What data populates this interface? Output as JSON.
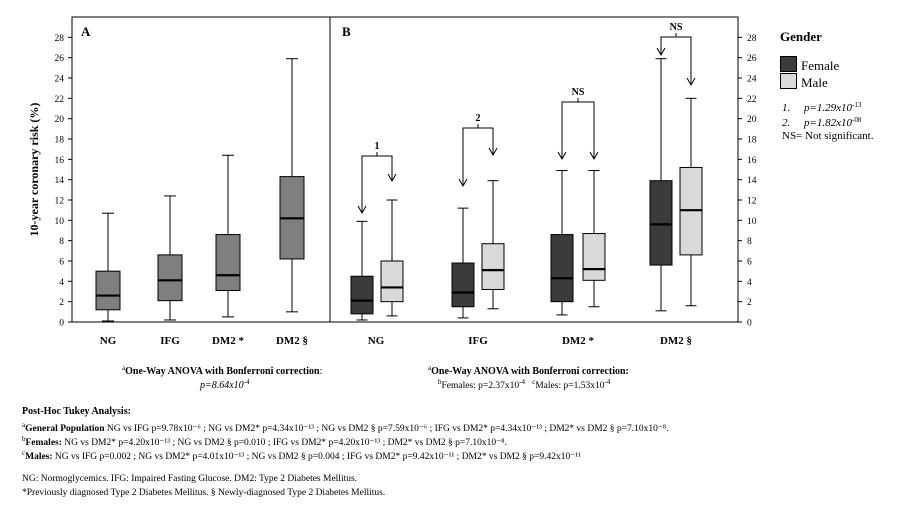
{
  "chart_data": [
    {
      "panel": "A",
      "type": "boxplot",
      "ylabel": "10-year coronary risk (%)",
      "ylim": [
        0,
        30
      ],
      "yticks": [
        0,
        2,
        4,
        6,
        8,
        10,
        12,
        14,
        16,
        18,
        20,
        22,
        24,
        26,
        28
      ],
      "categories": [
        "NG",
        "IFG",
        "DM2 *",
        "DM2 §"
      ],
      "boxes": [
        {
          "min": 0.1,
          "q1": 1.2,
          "median": 2.6,
          "q3": 5.0,
          "max": 10.7
        },
        {
          "min": 0.2,
          "q1": 2.1,
          "median": 4.1,
          "q3": 6.6,
          "max": 12.4
        },
        {
          "min": 0.5,
          "q1": 3.1,
          "median": 4.6,
          "q3": 8.6,
          "max": 16.4
        },
        {
          "min": 1.0,
          "q1": 6.2,
          "median": 10.2,
          "q3": 14.3,
          "max": 25.9
        }
      ],
      "color": "#7f7f7f"
    },
    {
      "panel": "B",
      "type": "boxplot",
      "ylim": [
        0,
        30
      ],
      "yticks": [
        0,
        2,
        4,
        6,
        8,
        10,
        12,
        14,
        16,
        18,
        20,
        22,
        24,
        26,
        28
      ],
      "categories": [
        "NG",
        "IFG",
        "DM2 *",
        "DM2 §"
      ],
      "series": [
        {
          "name": "Female",
          "color": "#3b3b3b",
          "boxes": [
            {
              "min": 0.2,
              "q1": 0.8,
              "median": 2.1,
              "q3": 4.5,
              "max": 9.9
            },
            {
              "min": 0.4,
              "q1": 1.5,
              "median": 2.9,
              "q3": 5.8,
              "max": 11.2
            },
            {
              "min": 0.7,
              "q1": 2.0,
              "median": 4.3,
              "q3": 8.6,
              "max": 14.9
            },
            {
              "min": 1.1,
              "q1": 5.6,
              "median": 9.6,
              "q3": 13.9,
              "max": 25.9
            }
          ]
        },
        {
          "name": "Male",
          "color": "#d9d9d9",
          "boxes": [
            {
              "min": 0.6,
              "q1": 2.0,
              "median": 3.4,
              "q3": 6.0,
              "max": 12.0
            },
            {
              "min": 1.3,
              "q1": 3.2,
              "median": 5.1,
              "q3": 7.7,
              "max": 13.9
            },
            {
              "min": 1.5,
              "q1": 4.1,
              "median": 5.2,
              "q3": 8.7,
              "max": 14.9
            },
            {
              "min": 1.6,
              "q1": 6.6,
              "median": 11.0,
              "q3": 15.2,
              "max": 22.0
            }
          ]
        }
      ],
      "annotations": [
        "1",
        "2",
        "NS",
        "NS"
      ]
    }
  ],
  "legend": {
    "title": "Gender",
    "items": [
      {
        "label": "Female",
        "color": "#3b3b3b"
      },
      {
        "label": "Male",
        "color": "#d9d9d9"
      }
    ],
    "note1_num": "1.",
    "note1_text": "p=1.29x10",
    "note1_exp": "-13",
    "note2_num": "2.",
    "note2_text": "p=1.82x10",
    "note2_exp": "-08",
    "ns_text": "NS= Not significant."
  },
  "anova_a": {
    "sup": "a",
    "title": "One-Way ANOVA with Bonferroni correction",
    "colon": ":",
    "p_text": "p=8.64x10",
    "p_exp": "-4"
  },
  "anova_b": {
    "sup": "a",
    "title": "One-Way ANOVA with Bonferroni correction:",
    "fem_sup": "b",
    "fem_text": "Females: p=2.37x10",
    "fem_exp": "-4",
    "male_sup": "c",
    "male_text": "Males: p=1.53x10",
    "male_exp": "-4"
  },
  "posthoc": {
    "title": "Post-Hoc Tukey Analysis:",
    "lines": [
      {
        "sup": "a",
        "label": "General Population",
        "text": " NG vs IFG p=9.78x10⁻⁶ ; NG vs DM2* p=4.34x10⁻¹³ ; NG vs DM2 § p=7.59x10⁻⁶ ; IFG vs DM2* p=4.34x10⁻¹³ ; DM2* vs DM2 § p=7.10x10⁻⁸."
      },
      {
        "sup": "b",
        "label": "Females:",
        "text": " NG vs DM2* p=4.20x10⁻¹³ ; NG vs DM2 § p=0.010 ; IFG vs DM2* p=4.20x10⁻¹³ ; DM2* vs DM2 § p=7.10x10⁻⁸."
      },
      {
        "sup": "c",
        "label": "Males:",
        "text": " NG vs IFG p=0.002 ; NG vs DM2* p=4.01x10⁻¹³ ; NG vs DM2 § p=0.004 ; IFG vs DM2* p=9.42x10⁻¹¹ ; DM2* vs DM2 § p=9.42x10⁻¹¹"
      }
    ]
  },
  "footnotes": [
    "NG: Normoglycemics. IFG: Impaired Fasting Glucose. DM2: Type 2 Diabetes Mellitus.",
    "*Previously diagnosed Type 2 Diabetes Mellitus. § Newly-diagnosed Type 2 Diabetes Mellitus."
  ]
}
